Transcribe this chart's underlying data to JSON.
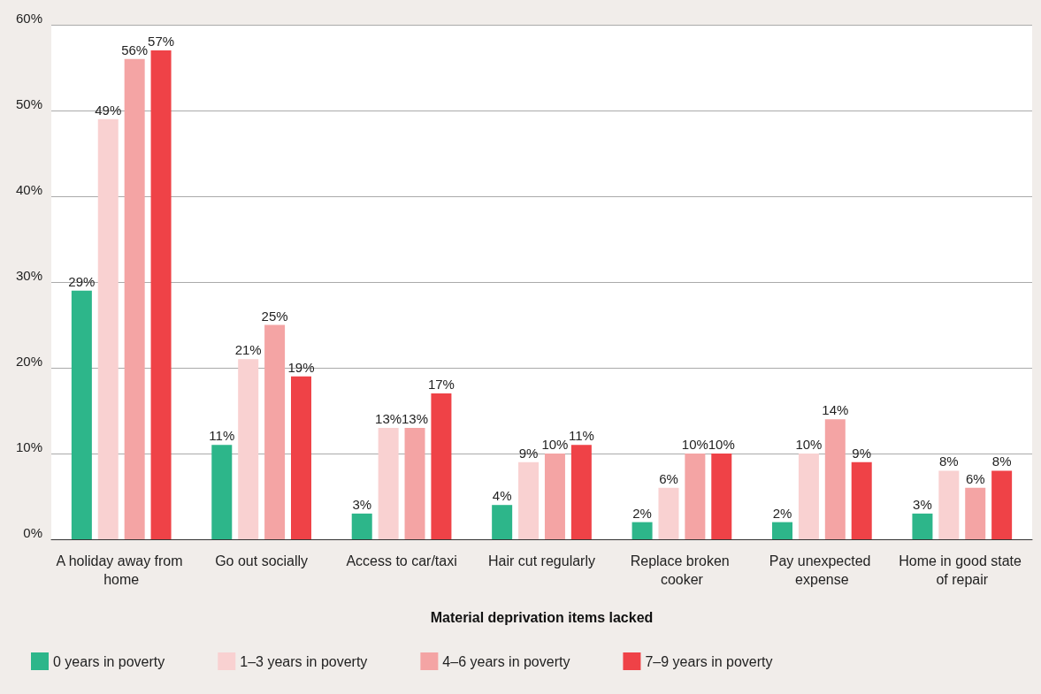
{
  "chart_data": {
    "type": "bar",
    "xlabel": "Material deprivation items lacked",
    "categories": [
      "A holiday away from home",
      "Go out socially",
      "Access to car/taxi",
      "Hair cut regularly",
      "Replace broken cooker",
      "Pay unexpected expense",
      "Home in good state of repair"
    ],
    "series": [
      {
        "name": "0 years in poverty",
        "color": "#2db68a",
        "values": [
          29,
          11,
          3,
          4,
          2,
          2,
          3
        ],
        "value_labels": [
          "29%",
          "11%",
          "3%",
          "4%",
          "2%",
          "2%",
          "3%"
        ]
      },
      {
        "name": "1–3 years in poverty",
        "color": "#f9d1d1",
        "values": [
          49,
          21,
          13,
          9,
          6,
          10,
          8
        ],
        "value_labels": [
          "49%",
          "21%",
          "13%",
          "9%",
          "6%",
          "10%",
          "8%"
        ]
      },
      {
        "name": "4–6 years in poverty",
        "color": "#f4a4a4",
        "values": [
          56,
          25,
          13,
          10,
          10,
          14,
          6
        ],
        "value_labels": [
          "56%",
          "25%",
          "13%",
          "10%",
          "10%",
          "14%",
          "6%"
        ]
      },
      {
        "name": "7–9 years in poverty",
        "color": "#ef4247",
        "values": [
          57,
          19,
          17,
          11,
          10,
          9,
          8
        ],
        "value_labels": [
          "57%",
          "19%",
          "17%",
          "11%",
          "10%",
          "9%",
          "8%"
        ]
      }
    ],
    "ylim": [
      0,
      60
    ],
    "yticks": [
      {
        "value": 0,
        "label": "0%"
      },
      {
        "value": 10,
        "label": "10%"
      },
      {
        "value": 20,
        "label": "20%"
      },
      {
        "value": 30,
        "label": "30%"
      },
      {
        "value": 40,
        "label": "40%"
      },
      {
        "value": 50,
        "label": "50%"
      },
      {
        "value": 60,
        "label": "60%"
      }
    ],
    "grid": "y",
    "legend": "bottom"
  }
}
